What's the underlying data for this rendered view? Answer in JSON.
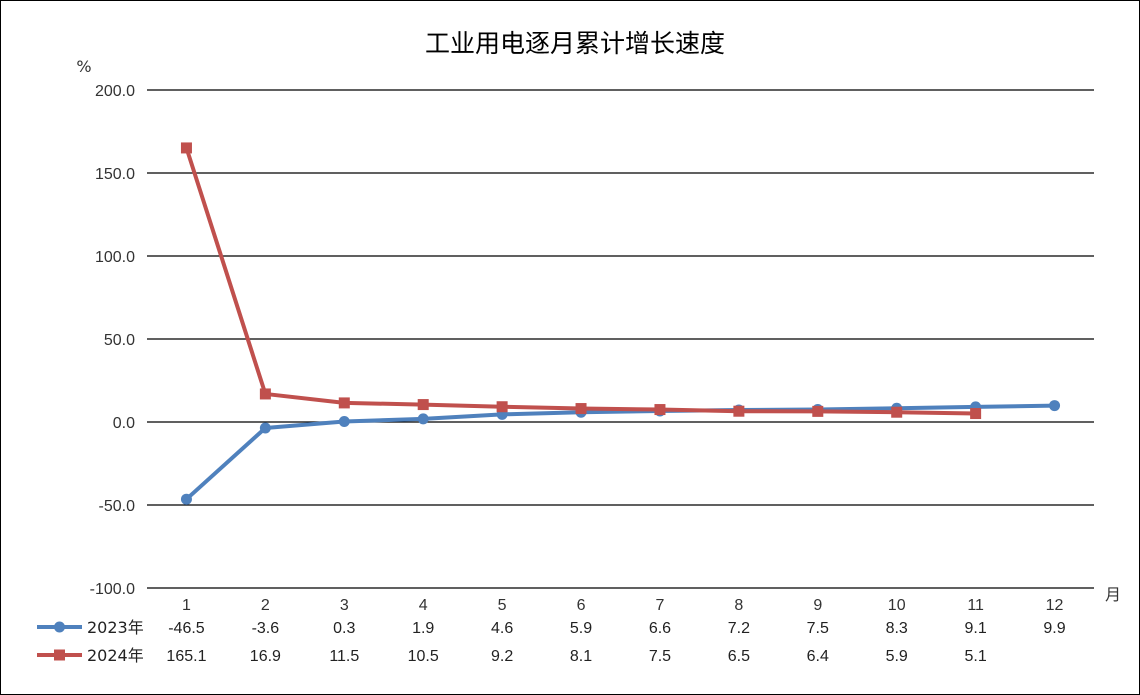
{
  "chart_data": {
    "type": "line",
    "title": "工业用电逐月累计增长速度",
    "ylabel": "%",
    "xlabel": "月",
    "ylim": [
      -100,
      200
    ],
    "yticks": [
      -100,
      -50,
      0,
      50,
      100,
      150,
      200
    ],
    "ytick_labels": [
      "-100.0",
      "-50.0",
      "0.0",
      "50.0",
      "100.0",
      "150.0",
      "200.0"
    ],
    "grid": true,
    "legend": "bottom-left data table",
    "categories": [
      "1",
      "2",
      "3",
      "4",
      "5",
      "6",
      "7",
      "8",
      "9",
      "10",
      "11",
      "12"
    ],
    "series": [
      {
        "name": "2023年",
        "color": "#4F81BD",
        "marker": "circle",
        "values": [
          -46.5,
          -3.6,
          0.3,
          1.9,
          4.6,
          5.9,
          6.6,
          7.2,
          7.5,
          8.3,
          9.1,
          9.9
        ],
        "labels": [
          "-46.5",
          "-3.6",
          "0.3",
          "1.9",
          "4.6",
          "5.9",
          "6.6",
          "7.2",
          "7.5",
          "8.3",
          "9.1",
          "9.9"
        ]
      },
      {
        "name": "2024年",
        "color": "#C0504D",
        "marker": "square",
        "values": [
          165.1,
          16.9,
          11.5,
          10.5,
          9.2,
          8.1,
          7.5,
          6.5,
          6.4,
          5.9,
          5.1,
          null
        ],
        "labels": [
          "165.1",
          "16.9",
          "11.5",
          "10.5",
          "9.2",
          "8.1",
          "7.5",
          "6.5",
          "6.4",
          "5.9",
          "5.1",
          ""
        ]
      }
    ]
  }
}
